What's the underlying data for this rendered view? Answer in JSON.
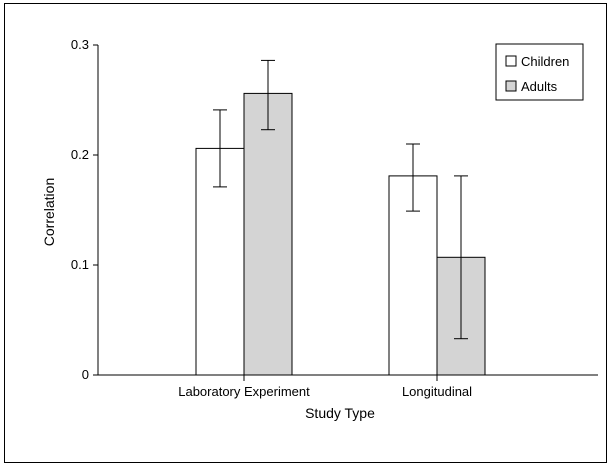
{
  "chart_data": {
    "type": "bar",
    "categories": [
      "Laboratory Experiment",
      "Longitudinal"
    ],
    "series": [
      {
        "name": "Children",
        "values": [
          0.206,
          0.181
        ],
        "error_low": [
          0.171,
          0.149
        ],
        "error_high": [
          0.241,
          0.21
        ],
        "color": "#ffffff"
      },
      {
        "name": "Adults",
        "values": [
          0.256,
          0.107
        ],
        "error_low": [
          0.223,
          0.033
        ],
        "error_high": [
          0.286,
          0.181
        ],
        "color": "#d4d4d4"
      }
    ],
    "xlabel": "Study Type",
    "ylabel": "Correlation",
    "ylim": [
      0,
      0.3
    ],
    "yticks": [
      "0",
      "0.1",
      "0.2",
      "0.3"
    ],
    "legend_position": "top-right",
    "grid": false
  }
}
